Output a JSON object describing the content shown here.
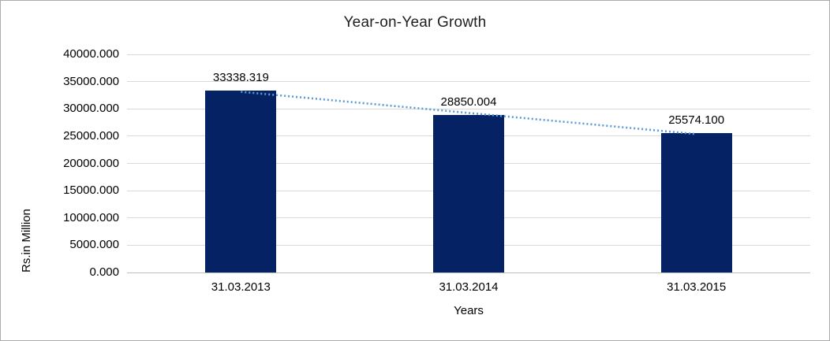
{
  "window": {
    "background": "#FFFFFF",
    "border_color": "#ABABAB"
  },
  "chart_data": {
    "type": "bar",
    "title": "Year-on-Year Growth",
    "xlabel": "Years",
    "ylabel": "Rs.in Million",
    "categories": [
      "31.03.2013",
      "31.03.2014",
      "31.03.2015"
    ],
    "values": [
      33338.319,
      28850.004,
      25574.1
    ],
    "data_labels": [
      "33338.319",
      "28850.004",
      "25574.100"
    ],
    "y_tick_values": [
      0,
      5000,
      10000,
      15000,
      20000,
      25000,
      30000,
      35000,
      40000
    ],
    "y_tick_labels": [
      "0.000",
      "5000.000",
      "10000.000",
      "15000.000",
      "20000.000",
      "25000.000",
      "30000.000",
      "35000.000",
      "40000.000"
    ],
    "ylim": [
      0,
      40000
    ],
    "grid": true,
    "legend": "none",
    "bar_color": "#052364",
    "gridline_color": "#D9D9D9",
    "axis_line_color": "#BFBFBF",
    "text_color": "#000000",
    "trendline": {
      "type": "linear",
      "style": "dotted",
      "color": "#5B9BD5"
    }
  }
}
